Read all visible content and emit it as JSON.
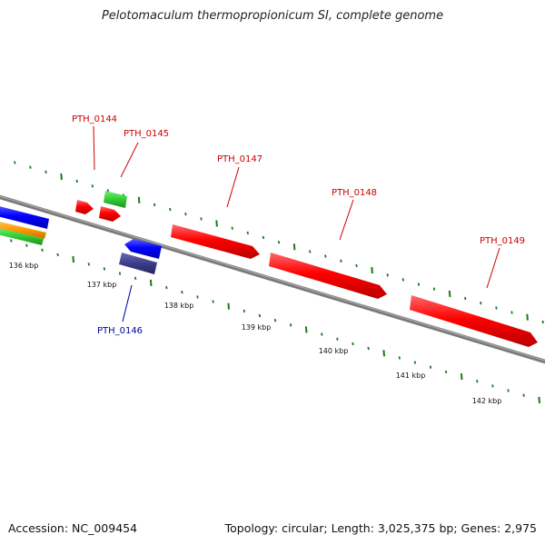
{
  "title": "Pelotomaculum thermopropionicum SI, complete genome",
  "footer": {
    "accession": "Accession: NC_009454",
    "summary": "Topology: circular; Length: 3,025,375 bp; Genes: 2,975"
  },
  "colors": {
    "backbone": "#808080",
    "forward_gene": "#ff0000",
    "forward_label": "#cc0000",
    "reverse_gene_blue": "#0000ff",
    "reverse_gene_purple": "#3c3c8c",
    "reverse_label": "#000099",
    "tick": "#1a7a1a",
    "orange_track": "#ff9900",
    "green_track": "#33cc33"
  },
  "scale_labels": [
    "136 kbp",
    "137 kbp",
    "138 kbp",
    "139 kbp",
    "140 kbp",
    "141 kbp",
    "142 kbp"
  ],
  "genes": [
    {
      "label": "PTH_0144",
      "strand": "forward"
    },
    {
      "label": "PTH_0145",
      "strand": "forward"
    },
    {
      "label": "PTH_0146",
      "strand": "reverse"
    },
    {
      "label": "PTH_0147",
      "strand": "forward"
    },
    {
      "label": "PTH_0148",
      "strand": "forward"
    },
    {
      "label": "PTH_0149",
      "strand": "forward"
    }
  ]
}
